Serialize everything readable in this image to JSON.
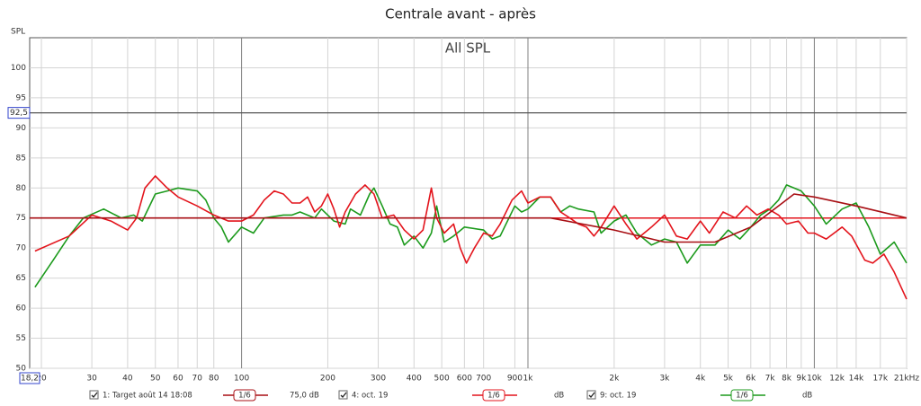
{
  "chart_data": {
    "type": "line",
    "title": "Centrale avant - après",
    "subtitle": "All SPL",
    "y_label": "SPL",
    "log_x": true,
    "grid": true,
    "xlim": [
      18.2,
      21000
    ],
    "ylim": [
      50,
      105
    ],
    "xticks": [
      20,
      30,
      40,
      50,
      60,
      70,
      80,
      100,
      200,
      300,
      400,
      500,
      600,
      700,
      {
        "value": 900,
        "label": "900"
      },
      {
        "value": 1000,
        "label": "1k"
      },
      {
        "value": 2000,
        "label": "2k"
      },
      {
        "value": 3000,
        "label": "3k"
      },
      {
        "value": 4000,
        "label": "4k"
      },
      {
        "value": 5000,
        "label": "5k"
      },
      {
        "value": 6000,
        "label": "6k"
      },
      {
        "value": 7000,
        "label": "7k"
      },
      {
        "value": 8000,
        "label": "8k"
      },
      {
        "value": 9000,
        "label": "9k"
      },
      {
        "value": 10000,
        "label": "10k"
      },
      {
        "value": 12000,
        "label": "12k"
      },
      {
        "value": 14000,
        "label": "14k"
      },
      {
        "value": 17000,
        "label": "17k"
      },
      {
        "value": 21000,
        "label": "21kHz"
      }
    ],
    "yticks": [
      50,
      55,
      60,
      65,
      70,
      75,
      80,
      85,
      90,
      95,
      100
    ],
    "cursor": {
      "x": {
        "value": 18.2,
        "label": "18,2"
      },
      "y": {
        "value": 92.5,
        "label": "92,5"
      }
    },
    "target_level": {
      "value": 75,
      "label": "75,0 dB",
      "color": "#e3141c"
    },
    "series": [
      {
        "name": "1: Target août 14 18:08",
        "color": "#a80f14",
        "smoothing": "1/6",
        "x": [
          18.2,
          1200,
          2000,
          3000,
          4500,
          6000,
          7500,
          8500,
          10000,
          14000,
          21000
        ],
        "values": [
          75,
          75,
          73,
          71,
          71,
          73.5,
          77,
          79,
          78.5,
          77,
          75
        ]
      },
      {
        "name": "4: oct. 19",
        "color": "#e3141c",
        "smoothing": "1/6",
        "unit": "dB",
        "x": [
          19,
          25,
          30,
          35,
          40,
          43,
          46,
          50,
          55,
          60,
          70,
          80,
          90,
          100,
          110,
          120,
          130,
          140,
          150,
          160,
          170,
          180,
          190,
          200,
          210,
          220,
          230,
          250,
          270,
          290,
          310,
          340,
          370,
          400,
          430,
          460,
          480,
          510,
          550,
          580,
          610,
          650,
          700,
          750,
          800,
          880,
          950,
          1000,
          1100,
          1200,
          1300,
          1400,
          1500,
          1600,
          1700,
          1800,
          2000,
          2200,
          2400,
          2700,
          3000,
          3300,
          3600,
          4000,
          4300,
          4800,
          5300,
          5800,
          6300,
          6900,
          7500,
          8000,
          8800,
          9500,
          10000,
          11000,
          12500,
          13500,
          15000,
          16000,
          17500,
          19000,
          21000
        ],
        "values": [
          69.5,
          72,
          75.5,
          74.5,
          73,
          75,
          80,
          82,
          80,
          78.5,
          77,
          75.5,
          74.5,
          74.5,
          75.5,
          78,
          79.5,
          79,
          77.5,
          77.5,
          78.5,
          76,
          77,
          79,
          76.5,
          73.5,
          76,
          79,
          80.5,
          79,
          75,
          75.5,
          73,
          71.5,
          73,
          80,
          75,
          72.5,
          74,
          70,
          67.5,
          70,
          72.5,
          72,
          74,
          78,
          79.5,
          77.5,
          78.5,
          78.5,
          76,
          75,
          74,
          73.5,
          72,
          73.5,
          77,
          74,
          71.5,
          73.5,
          75.5,
          72,
          71.5,
          74.5,
          72.5,
          76,
          75,
          77,
          75.5,
          76.5,
          75.5,
          74,
          74.5,
          72.5,
          72.5,
          71.5,
          73.5,
          72,
          68,
          67.5,
          69,
          66,
          61.5
        ]
      },
      {
        "name": "9: oct. 19",
        "color": "#1c9a1c",
        "smoothing": "1/6",
        "unit": "dB",
        "x": [
          19,
          22,
          25,
          28,
          33,
          38,
          42,
          45,
          50,
          55,
          60,
          70,
          75,
          80,
          85,
          90,
          100,
          110,
          120,
          140,
          150,
          160,
          180,
          190,
          210,
          230,
          240,
          260,
          280,
          290,
          310,
          330,
          350,
          370,
          400,
          430,
          460,
          480,
          510,
          550,
          600,
          700,
          750,
          800,
          900,
          950,
          1000,
          1100,
          1200,
          1300,
          1400,
          1500,
          1700,
          1800,
          2000,
          2200,
          2400,
          2700,
          3000,
          3300,
          3600,
          4000,
          4500,
          5000,
          5500,
          6000,
          6500,
          7000,
          7500,
          8000,
          9000,
          10000,
          11000,
          12500,
          14000,
          15500,
          17000,
          19000,
          21000
        ],
        "values": [
          63.5,
          68,
          72,
          75,
          76.5,
          75,
          75.5,
          74.5,
          79,
          79.5,
          80,
          79.5,
          78,
          75,
          73.5,
          71,
          73.5,
          72.5,
          75,
          75.5,
          75.5,
          76,
          75,
          76.5,
          74.5,
          74,
          76.5,
          75.5,
          79,
          80,
          77,
          74,
          73.5,
          70.5,
          72,
          70,
          72.5,
          77,
          71,
          72,
          73.5,
          73,
          71.5,
          72,
          77,
          76,
          76.5,
          78.5,
          78.5,
          76,
          77,
          76.5,
          76,
          72.5,
          74.5,
          75.5,
          72.5,
          70.5,
          71.5,
          71,
          67.5,
          70.5,
          70.5,
          73,
          71.5,
          73.5,
          75.5,
          76.5,
          78,
          80.5,
          79.5,
          77,
          74,
          76.5,
          77.5,
          73.5,
          69,
          71,
          67.5
        ]
      }
    ]
  }
}
